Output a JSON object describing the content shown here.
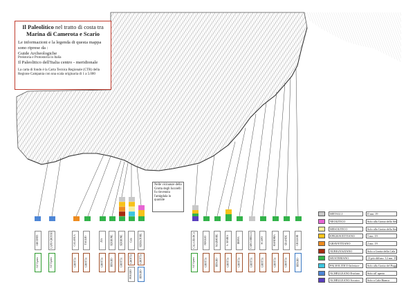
{
  "title": {
    "line1_bold": "Il Paleolitico",
    "line1_rest": " nel tratto di costa tra",
    "line2": "Marina di Camerota e Scario",
    "intro": "Le informazioni e la legenda di questa mappa sono riprese da :",
    "source_title": "Guide Archeologiche",
    "source_series": "Preistoria e Protostoria in Italia",
    "source_volume": "Il Paleolitico dell'Italia centro - meridionale",
    "basemap_note": "La carta di fondo è la Carta Tecnica Regionale (CTR) della Regione Campania con una scala originaria di 1 a 5.000"
  },
  "note_box": "Nelle vicinanze della Grotta degli Iscoielli fu rinvenuta l'amigdala in quarzite",
  "site_cards": [
    {
      "upper": "ARCONTI",
      "lower": "All' Aperto"
    },
    {
      "upper": "CAPO GROSSO",
      "lower": "All' Aperto"
    },
    {
      "upper": "CALANCA",
      "lower": "GROTTA"
    },
    {
      "upper": "TAGLIO",
      "lower": "GROTTA"
    },
    {
      "upper": "ZIA",
      "lower": "GROTTA"
    },
    {
      "upper": "SERRONE",
      "lower": "RIPARO"
    },
    {
      "upper": "SERRONE",
      "lower": "GROTTA"
    },
    {
      "upper": "Cala",
      "lower": "GROTTA"
    },
    {
      "upper": "POGGIO",
      "lower": "RIPARO"
    },
    {
      "upper": "SERRATORE",
      "lower": "GROTTA"
    },
    {
      "upper": "CALA BIANCA",
      "lower": "All' Aperto"
    },
    {
      "upper": "NOGLIO",
      "lower": "GROTTA"
    },
    {
      "upper": "MARMORE",
      "lower": "RIPARO"
    },
    {
      "upper": "S. MARIA",
      "lower": "GROTTA"
    },
    {
      "upper": "DEFFA",
      "lower": "GROTTA"
    },
    {
      "upper": "CARCARELLA",
      "lower": "GROTTA"
    },
    {
      "upper": "SCAFO",
      "lower": "GROTTA"
    },
    {
      "upper": "MANDRIA",
      "lower": "GROTTA"
    },
    {
      "upper": "GRANDE",
      "lower": "GROTTA"
    },
    {
      "upper": "GIGLIARI",
      "lower": "RIPARO"
    }
  ],
  "legend": [
    {
      "name": "METALLI",
      "desc": "II mn. 19",
      "color": "#c8c8c8"
    },
    {
      "name": "NEOLITICO",
      "desc": "Solo alla Grotta dello Serratore",
      "color": "#e765d3"
    },
    {
      "name": "MESOLITICO",
      "desc": "Solo alla Grotta della Serratore",
      "color": "#f8f0a0"
    },
    {
      "name": "EPIGRAVETTIANO",
      "desc": "5 mn. 19",
      "color": "#f7c21b"
    },
    {
      "name": "GRAVETTIANO",
      "desc": "2 mn. 19",
      "color": "#ee8c20"
    },
    {
      "name": "AURIGNAZIANO",
      "desc": "Solo a Grotta della Cala",
      "color": "#a52a0f"
    },
    {
      "name": "MUSTERIANO",
      "desc": "13 più diffuso: 12 mn. 19",
      "color": "#33b34a"
    },
    {
      "name": "PALEOLITICO Inferiore",
      "desc": "Solo alla Grotta del Poggio",
      "color": "#3cc6e0"
    },
    {
      "name": "ACHEULEANO Evoluto",
      "desc": "Solo all' aperto",
      "color": "#4d86d6"
    },
    {
      "name": "ACHEULEANO Arcaico",
      "desc": "Solo a Cala Bianca",
      "color": "#5a3fbf"
    }
  ]
}
